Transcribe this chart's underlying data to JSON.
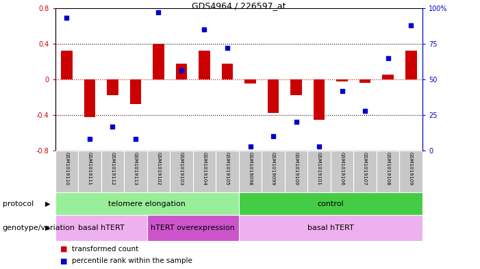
{
  "title": "GDS4964 / 226597_at",
  "samples": [
    "GSM1019110",
    "GSM1019111",
    "GSM1019112",
    "GSM1019113",
    "GSM1019102",
    "GSM1019103",
    "GSM1019104",
    "GSM1019105",
    "GSM1019098",
    "GSM1019099",
    "GSM1019100",
    "GSM1019101",
    "GSM1019106",
    "GSM1019107",
    "GSM1019108",
    "GSM1019109"
  ],
  "bar_values": [
    0.32,
    -0.42,
    -0.18,
    -0.28,
    0.4,
    0.18,
    0.32,
    0.18,
    -0.05,
    -0.38,
    -0.18,
    -0.45,
    -0.02,
    -0.04,
    0.05,
    0.32
  ],
  "percentile_values": [
    93,
    8,
    17,
    8,
    97,
    56,
    85,
    72,
    3,
    10,
    20,
    3,
    42,
    28,
    65,
    88
  ],
  "ylim_left": [
    -0.8,
    0.8
  ],
  "ylim_right": [
    0,
    100
  ],
  "yticks_left": [
    -0.8,
    -0.4,
    0.0,
    0.4,
    0.8
  ],
  "yticks_right": [
    0,
    25,
    50,
    75,
    100
  ],
  "ytick_labels_right": [
    "0",
    "25",
    "50",
    "75",
    "100%"
  ],
  "bar_color": "#CC0000",
  "dot_color": "#0000CC",
  "zero_line_color": "#CC0000",
  "protocol_groups": [
    {
      "label": "telomere elongation",
      "start": 0,
      "end": 8,
      "color": "#99EE99"
    },
    {
      "label": "control",
      "start": 8,
      "end": 16,
      "color": "#44CC44"
    }
  ],
  "genotype_groups": [
    {
      "label": "basal hTERT",
      "start": 0,
      "end": 4,
      "color": "#EEB0EE"
    },
    {
      "label": "hTERT overexpression",
      "start": 4,
      "end": 8,
      "color": "#CC55CC"
    },
    {
      "label": "basal hTERT",
      "start": 8,
      "end": 16,
      "color": "#EEB0EE"
    }
  ],
  "legend_items": [
    {
      "label": "transformed count",
      "color": "#CC0000"
    },
    {
      "label": "percentile rank within the sample",
      "color": "#0000CC"
    }
  ],
  "sample_box_color": "#C8C8C8",
  "protocol_label": "protocol",
  "genotype_label": "genotype/variation"
}
